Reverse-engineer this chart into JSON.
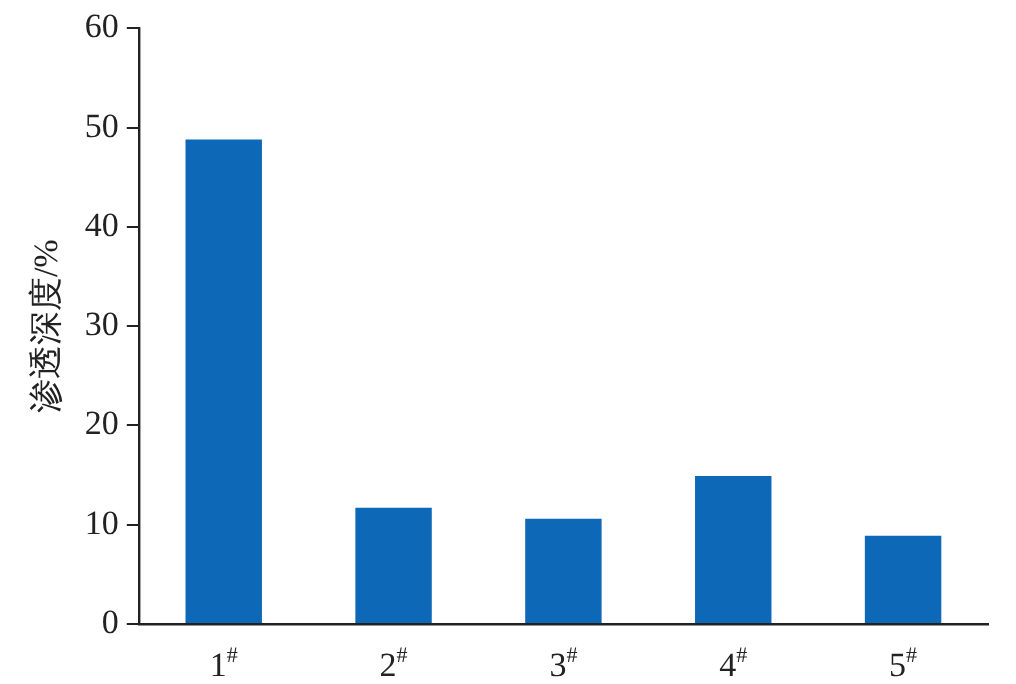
{
  "chart_data": {
    "type": "bar",
    "ylabel": "渗透深度/%",
    "categories": [
      "1$^{#}$",
      "2$^{#}$",
      "3$^{#}$",
      "4$^{#}$",
      "5$^{#}$"
    ],
    "values": [
      48.8,
      11.7,
      10.6,
      14.9,
      8.9
    ],
    "color": "#0e68b8",
    "ylim": [
      0,
      60
    ],
    "yticks": [
      0,
      10,
      20,
      30,
      40,
      50,
      60
    ],
    "grid": false,
    "legend": false
  }
}
